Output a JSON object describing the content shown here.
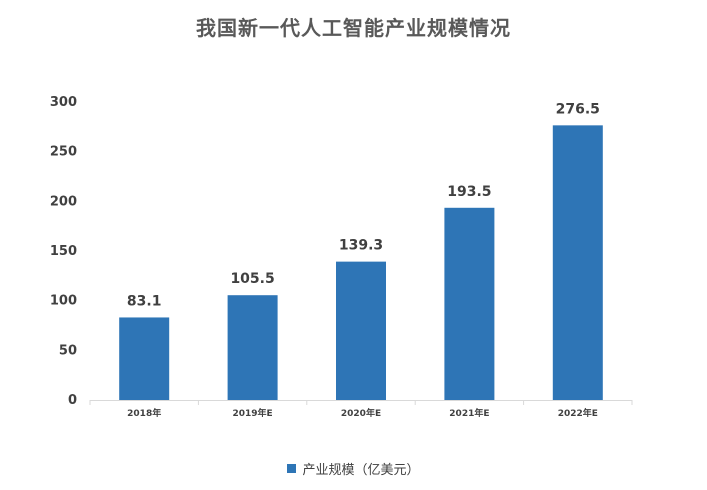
{
  "chart_data": {
    "type": "bar",
    "title": "我国新一代人工智能产业规模情况",
    "categories": [
      "2018年",
      "2019年E",
      "2020年E",
      "2021年E",
      "2022年E"
    ],
    "series": [
      {
        "name": "产业规模（亿美元）",
        "values": [
          83.1,
          105.5,
          139.3,
          193.5,
          276.5
        ],
        "color": "#2e75b6"
      }
    ],
    "data_labels": [
      "83.1",
      "105.5",
      "139.3",
      "193.5",
      "276.5"
    ],
    "yticks": [
      0,
      50,
      100,
      150,
      200,
      250,
      300
    ],
    "ylim": [
      0,
      300
    ],
    "grid": false,
    "legend_position": "bottom"
  }
}
